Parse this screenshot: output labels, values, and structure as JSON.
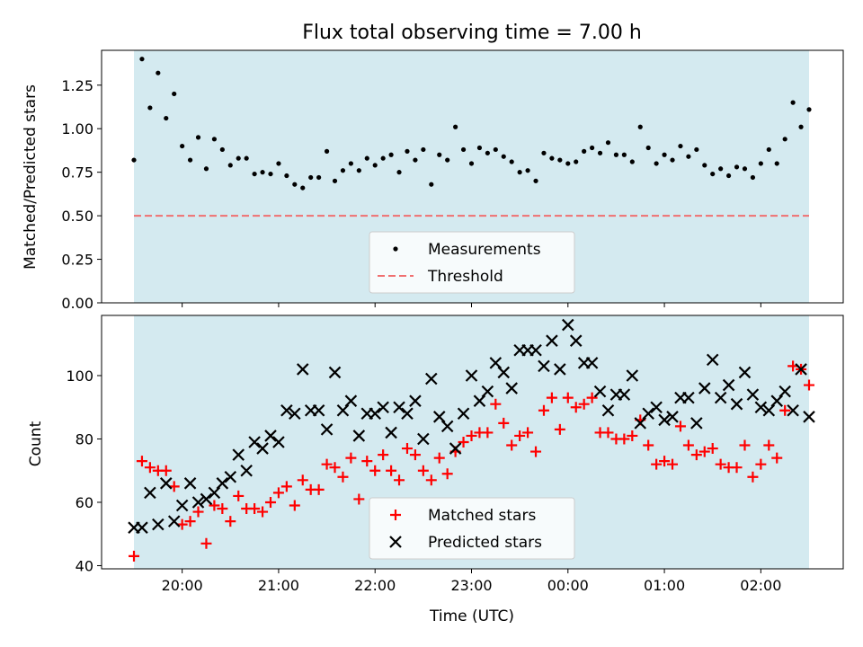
{
  "chart_data": [
    {
      "type": "scatter",
      "title": "Flux total observing time = 7.00 h",
      "xlabel": "",
      "ylabel": "Matched/Predicted stars",
      "ylim": [
        0,
        1.45
      ],
      "yticks": [
        "0.00",
        "0.25",
        "0.50",
        "0.75",
        "1.00",
        "1.25"
      ],
      "ytick_values": [
        0,
        0.25,
        0.5,
        0.75,
        1.0,
        1.25
      ],
      "shaded_region": {
        "start": "19:30",
        "end": "02:30",
        "color": "#d4eaf0"
      },
      "threshold": {
        "name": "Threshold",
        "value": 0.5,
        "color": "#f07070"
      },
      "legend": {
        "placement": "bottom-center",
        "entries": [
          "Measurements",
          "Threshold"
        ]
      },
      "series": [
        {
          "name": "Measurements",
          "marker": "dot",
          "color": "#000000",
          "x": [
            "19:30",
            "19:35",
            "19:40",
            "19:45",
            "19:50",
            "19:55",
            "20:00",
            "20:05",
            "20:10",
            "20:15",
            "20:20",
            "20:25",
            "20:30",
            "20:35",
            "20:40",
            "20:45",
            "20:50",
            "20:55",
            "21:00",
            "21:05",
            "21:10",
            "21:15",
            "21:20",
            "21:25",
            "21:30",
            "21:35",
            "21:40",
            "21:45",
            "21:50",
            "21:55",
            "22:00",
            "22:05",
            "22:10",
            "22:15",
            "22:20",
            "22:25",
            "22:30",
            "22:35",
            "22:40",
            "22:45",
            "22:50",
            "22:55",
            "23:00",
            "23:05",
            "23:10",
            "23:15",
            "23:20",
            "23:25",
            "23:30",
            "23:35",
            "23:40",
            "23:45",
            "23:50",
            "23:55",
            "00:00",
            "00:05",
            "00:10",
            "00:15",
            "00:20",
            "00:25",
            "00:30",
            "00:35",
            "00:40",
            "00:45",
            "00:50",
            "00:55",
            "01:00",
            "01:05",
            "01:10",
            "01:15",
            "01:20",
            "01:25",
            "01:30",
            "01:35",
            "01:40",
            "01:45",
            "01:50",
            "01:55",
            "02:00",
            "02:05",
            "02:10",
            "02:15",
            "02:20",
            "02:25",
            "02:30"
          ],
          "y": [
            0.82,
            1.4,
            1.12,
            1.32,
            1.06,
            1.2,
            0.9,
            0.82,
            0.95,
            0.77,
            0.94,
            0.88,
            0.79,
            0.83,
            0.83,
            0.74,
            0.75,
            0.74,
            0.8,
            0.73,
            0.68,
            0.66,
            0.72,
            0.72,
            0.87,
            0.7,
            0.76,
            0.8,
            0.76,
            0.83,
            0.79,
            0.83,
            0.85,
            0.75,
            0.87,
            0.82,
            0.88,
            0.68,
            0.85,
            0.82,
            1.01,
            0.88,
            0.8,
            0.89,
            0.86,
            0.88,
            0.84,
            0.81,
            0.75,
            0.76,
            0.7,
            0.86,
            0.83,
            0.82,
            0.8,
            0.81,
            0.87,
            0.89,
            0.86,
            0.92,
            0.85,
            0.85,
            0.81,
            1.01,
            0.89,
            0.8,
            0.85,
            0.82,
            0.9,
            0.84,
            0.88,
            0.79,
            0.74,
            0.77,
            0.73,
            0.78,
            0.77,
            0.72,
            0.8,
            0.88,
            0.8,
            0.94,
            1.15,
            1.01,
            1.11
          ]
        }
      ]
    },
    {
      "type": "scatter",
      "title": "",
      "xlabel": "Time (UTC)",
      "ylabel": "Count",
      "ylim": [
        39,
        119
      ],
      "yticks": [
        "40",
        "60",
        "80",
        "100"
      ],
      "ytick_values": [
        40,
        60,
        80,
        100
      ],
      "categories": [
        "20:00",
        "21:00",
        "22:00",
        "23:00",
        "00:00",
        "01:00",
        "02:00"
      ],
      "shaded_region": {
        "start": "19:30",
        "end": "02:30",
        "color": "#d4eaf0"
      },
      "legend": {
        "placement": "bottom-center",
        "entries": [
          "Matched stars",
          "Predicted stars"
        ]
      },
      "series": [
        {
          "name": "Matched stars",
          "marker": "plus",
          "color": "#ff0000",
          "x": [
            "19:30",
            "19:35",
            "19:40",
            "19:45",
            "19:50",
            "19:55",
            "20:00",
            "20:05",
            "20:10",
            "20:15",
            "20:20",
            "20:25",
            "20:30",
            "20:35",
            "20:40",
            "20:45",
            "20:50",
            "20:55",
            "21:00",
            "21:05",
            "21:10",
            "21:15",
            "21:20",
            "21:25",
            "21:30",
            "21:35",
            "21:40",
            "21:45",
            "21:50",
            "21:55",
            "22:00",
            "22:05",
            "22:10",
            "22:15",
            "22:20",
            "22:25",
            "22:30",
            "22:35",
            "22:40",
            "22:45",
            "22:50",
            "22:55",
            "23:00",
            "23:05",
            "23:10",
            "23:15",
            "23:20",
            "23:25",
            "23:30",
            "23:35",
            "23:40",
            "23:45",
            "23:50",
            "23:55",
            "00:00",
            "00:05",
            "00:10",
            "00:15",
            "00:20",
            "00:25",
            "00:30",
            "00:35",
            "00:40",
            "00:45",
            "00:50",
            "00:55",
            "01:00",
            "01:05",
            "01:10",
            "01:15",
            "01:20",
            "01:25",
            "01:30",
            "01:35",
            "01:40",
            "01:45",
            "01:50",
            "01:55",
            "02:00",
            "02:05",
            "02:10",
            "02:15",
            "02:20",
            "02:25",
            "02:30"
          ],
          "y": [
            43,
            73,
            71,
            70,
            70,
            65,
            53,
            54,
            57,
            47,
            59,
            58,
            54,
            62,
            58,
            58,
            57,
            60,
            63,
            65,
            59,
            67,
            64,
            64,
            72,
            71,
            68,
            74,
            61,
            73,
            70,
            75,
            70,
            67,
            77,
            75,
            70,
            67,
            74,
            69,
            76,
            79,
            81,
            82,
            82,
            91,
            85,
            78,
            81,
            82,
            76,
            89,
            93,
            83,
            93,
            90,
            91,
            93,
            82,
            82,
            80,
            80,
            81,
            86,
            78,
            72,
            73,
            72,
            84,
            78,
            75,
            76,
            77,
            72,
            71,
            71,
            78,
            68,
            72,
            78,
            74,
            89,
            103,
            102,
            97
          ]
        },
        {
          "name": "Predicted stars",
          "marker": "x",
          "color": "#000000",
          "x": [
            "19:30",
            "19:35",
            "19:40",
            "19:45",
            "19:50",
            "19:55",
            "20:00",
            "20:05",
            "20:10",
            "20:15",
            "20:20",
            "20:25",
            "20:30",
            "20:35",
            "20:40",
            "20:45",
            "20:50",
            "20:55",
            "21:00",
            "21:05",
            "21:10",
            "21:15",
            "21:20",
            "21:25",
            "21:30",
            "21:35",
            "21:40",
            "21:45",
            "21:50",
            "21:55",
            "22:00",
            "22:05",
            "22:10",
            "22:15",
            "22:20",
            "22:25",
            "22:30",
            "22:35",
            "22:40",
            "22:45",
            "22:50",
            "22:55",
            "23:00",
            "23:05",
            "23:10",
            "23:15",
            "23:20",
            "23:25",
            "23:30",
            "23:35",
            "23:40",
            "23:45",
            "23:50",
            "23:55",
            "00:00",
            "00:05",
            "00:10",
            "00:15",
            "00:20",
            "00:25",
            "00:30",
            "00:35",
            "00:40",
            "00:45",
            "00:50",
            "00:55",
            "01:00",
            "01:05",
            "01:10",
            "01:15",
            "01:20",
            "01:25",
            "01:30",
            "01:35",
            "01:40",
            "01:45",
            "01:50",
            "01:55",
            "02:00",
            "02:05",
            "02:10",
            "02:15",
            "02:20",
            "02:25",
            "02:30"
          ],
          "y": [
            52,
            52,
            63,
            53,
            66,
            54,
            59,
            66,
            60,
            61,
            63,
            66,
            68,
            75,
            70,
            79,
            77,
            81,
            79,
            89,
            88,
            102,
            89,
            89,
            83,
            101,
            89,
            92,
            81,
            88,
            88,
            90,
            82,
            90,
            88,
            92,
            80,
            99,
            87,
            84,
            77,
            88,
            100,
            92,
            95,
            104,
            101,
            96,
            108,
            108,
            108,
            103,
            111,
            102,
            116,
            111,
            104,
            104,
            95,
            89,
            94,
            94,
            100,
            85,
            88,
            90,
            86,
            87,
            93,
            93,
            85,
            96,
            105,
            93,
            97,
            91,
            101,
            94,
            90,
            89,
            92,
            95,
            89,
            102,
            87
          ]
        }
      ]
    }
  ]
}
